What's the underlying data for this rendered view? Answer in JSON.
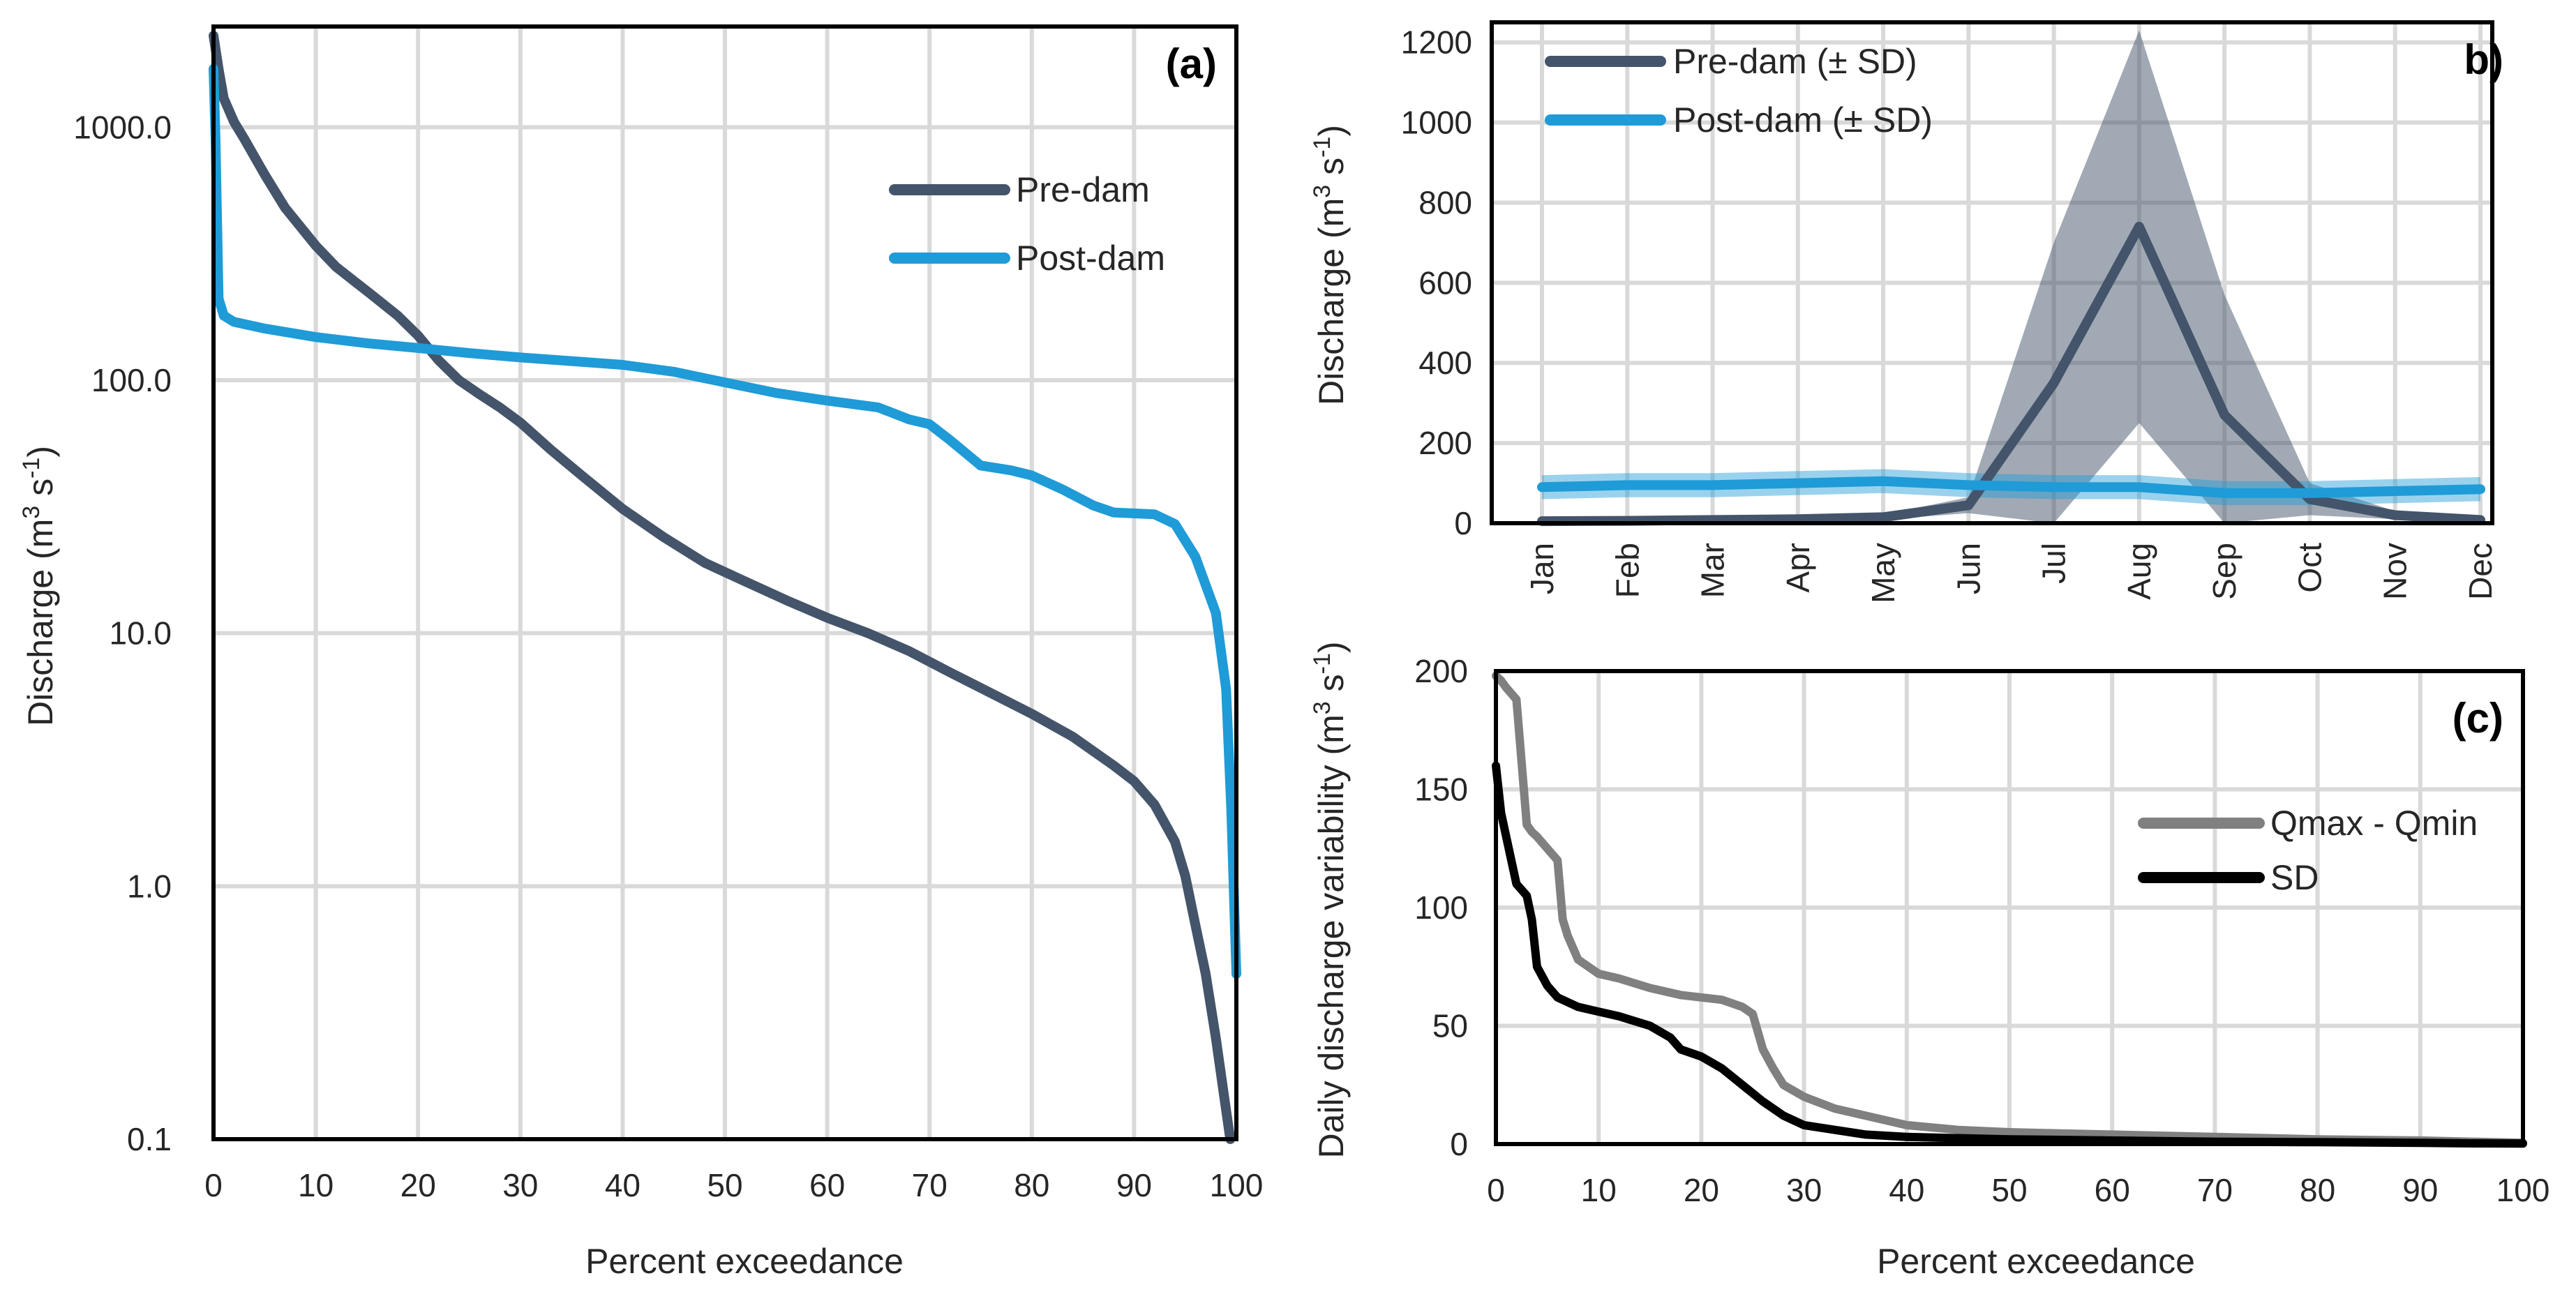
{
  "colors": {
    "pre": "#44546A",
    "post": "#1F9BD7",
    "qrange": "#808080",
    "sd": "#000000",
    "grid": "#D9D9D9"
  },
  "chart_data": [
    {
      "panel": "(a)",
      "type": "line",
      "xlabel": "Percent exceedance",
      "ylabel": "Discharge (m³ s⁻¹)",
      "ylabel_parts": {
        "main": "Discharge (m",
        "sup1": "3",
        "mid": " s",
        "sup2": "-1",
        "end": ")"
      },
      "yscale": "log",
      "xlim": [
        0,
        100
      ],
      "ylim": [
        0.1,
        2500
      ],
      "xticks": [
        "0",
        "10",
        "20",
        "30",
        "40",
        "50",
        "60",
        "70",
        "80",
        "90",
        "100"
      ],
      "yticks": [
        {
          "value": 0.1,
          "label": "0.1"
        },
        {
          "value": 1,
          "label": "1.0"
        },
        {
          "value": 10,
          "label": "10.0"
        },
        {
          "value": 100,
          "label": "100.0"
        },
        {
          "value": 1000,
          "label": "1000.0"
        }
      ],
      "legend_position": "top-right",
      "series": [
        {
          "name": "Pre-dam",
          "x": [
            0,
            0.5,
            1,
            2,
            3,
            5,
            7,
            10,
            12,
            15,
            18,
            20,
            22,
            24,
            26,
            28,
            30,
            33,
            36,
            40,
            44,
            48,
            52,
            56,
            60,
            64,
            68,
            72,
            76,
            80,
            84,
            88,
            90,
            92,
            94,
            95,
            96,
            97,
            98,
            99,
            99.4
          ],
          "y": [
            2300,
            1700,
            1300,
            1050,
            900,
            650,
            480,
            340,
            280,
            225,
            180,
            150,
            120,
            100,
            88,
            78,
            68,
            53,
            42,
            31,
            24,
            19,
            16,
            13.5,
            11.5,
            10,
            8.5,
            7,
            5.8,
            4.8,
            3.9,
            3.0,
            2.6,
            2.1,
            1.5,
            1.1,
            0.7,
            0.45,
            0.25,
            0.13,
            0.1
          ]
        },
        {
          "name": "Post-dam",
          "x": [
            0,
            0.2,
            0.5,
            1,
            2,
            5,
            10,
            15,
            20,
            25,
            30,
            35,
            40,
            45,
            50,
            55,
            60,
            65,
            68,
            70,
            72,
            75,
            78,
            80,
            83,
            86,
            88,
            92,
            94,
            96,
            98,
            99,
            99.5,
            100
          ],
          "y": [
            1700,
            900,
            210,
            180,
            170,
            160,
            148,
            140,
            134,
            128,
            123,
            119,
            115,
            108,
            98,
            89,
            83,
            78,
            70,
            67,
            58,
            46,
            44,
            42,
            37,
            32,
            30,
            29.5,
            27,
            20,
            12,
            6,
            2,
            0.45
          ]
        }
      ]
    },
    {
      "panel": "b)",
      "type": "line",
      "xlabel": "",
      "ylabel": "Discharge (m³ s⁻¹)",
      "ylabel_parts": {
        "main": "Discharge (m",
        "sup1": "3",
        "mid": " s",
        "sup2": "-1",
        "end": ")"
      },
      "categories": [
        "Jan",
        "Feb",
        "Mar",
        "Apr",
        "May",
        "Jun",
        "Jul",
        "Aug",
        "Sep",
        "Oct",
        "Nov",
        "Dec"
      ],
      "ylim": [
        0,
        1250
      ],
      "yticks": [
        "0",
        "200",
        "400",
        "600",
        "800",
        "1000",
        "1200"
      ],
      "legend_position": "top-left",
      "series": [
        {
          "name": "Pre-dam (± SD)",
          "values": [
            5,
            6,
            8,
            10,
            15,
            45,
            350,
            740,
            270,
            60,
            20,
            8
          ],
          "sd": [
            2,
            2,
            3,
            4,
            6,
            20,
            350,
            490,
            300,
            40,
            10,
            3
          ]
        },
        {
          "name": "Post-dam (± SD)",
          "values": [
            90,
            95,
            95,
            100,
            105,
            95,
            90,
            90,
            75,
            75,
            80,
            85
          ],
          "sd": [
            30,
            30,
            30,
            30,
            30,
            30,
            30,
            30,
            30,
            30,
            30,
            30
          ]
        }
      ]
    },
    {
      "panel": "(c)",
      "type": "line",
      "xlabel": "Percent exceedance",
      "ylabel": "Daily discharge variability (m³ s⁻¹)",
      "ylabel_parts": {
        "main": "Daily discharge variability (m",
        "sup1": "3",
        "mid": " s",
        "sup2": "-1",
        "end": ")"
      },
      "xlim": [
        0,
        100
      ],
      "ylim": [
        0,
        200
      ],
      "xticks": [
        "0",
        "10",
        "20",
        "30",
        "40",
        "50",
        "60",
        "70",
        "80",
        "90",
        "100"
      ],
      "yticks": [
        "0",
        "50",
        "100",
        "150",
        "200"
      ],
      "legend_position": "right",
      "series": [
        {
          "name": "Qmax - Qmin",
          "x": [
            0,
            0.5,
            1,
            2,
            3,
            3.5,
            4,
            5,
            6,
            6.5,
            7,
            8,
            10,
            12,
            15,
            18,
            20,
            22,
            24,
            25,
            26,
            27,
            28,
            30,
            33,
            36,
            40,
            45,
            50,
            60,
            70,
            80,
            90,
            95,
            100
          ],
          "y": [
            198,
            196,
            193,
            188,
            135,
            132,
            130,
            125,
            120,
            95,
            88,
            78,
            72,
            70,
            66,
            63,
            62,
            61,
            58,
            55,
            40,
            32,
            25,
            20,
            15,
            12,
            8,
            6,
            5,
            4,
            3,
            2,
            1.5,
            1,
            0.5
          ]
        },
        {
          "name": "SD",
          "x": [
            0,
            0.5,
            1,
            2,
            3,
            3.5,
            4,
            5,
            6,
            8,
            10,
            12,
            15,
            17,
            18,
            20,
            22,
            24,
            26,
            28,
            30,
            33,
            36,
            40,
            45,
            50,
            60,
            70,
            80,
            90,
            95,
            100
          ],
          "y": [
            160,
            140,
            130,
            110,
            105,
            95,
            75,
            67,
            62,
            58,
            56,
            54,
            50,
            45,
            40,
            37,
            32,
            25,
            18,
            12,
            8,
            6,
            4,
            3,
            2.5,
            2,
            1.5,
            1,
            0.8,
            0.5,
            0.3,
            0.2
          ]
        }
      ]
    }
  ]
}
